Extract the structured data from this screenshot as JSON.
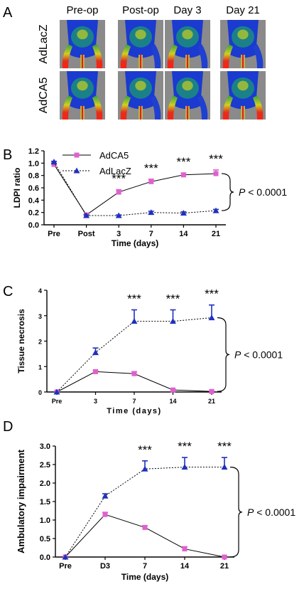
{
  "colors": {
    "pink": "#e060d0",
    "blue": "#2030c0",
    "axis": "#000000"
  },
  "panel_a": {
    "letter": "A",
    "columns": [
      "Pre-op",
      "Post-op",
      "Day 3",
      "Day 21"
    ],
    "rows": [
      "AdLacZ",
      "AdCA5"
    ]
  },
  "panel_b": {
    "letter": "B"
  },
  "panel_c": {
    "letter": "C"
  },
  "panel_d": {
    "letter": "D"
  },
  "chart_data": [
    {
      "type": "line",
      "ylabel": "LDPI ratio",
      "xlabel": "Time (days)",
      "categories": [
        "Pre",
        "Post",
        "3",
        "7",
        "14",
        "21"
      ],
      "ylim": [
        0,
        1.2
      ],
      "yticks": [
        "0.0",
        "0.2",
        "0.4",
        "0.6",
        "0.8",
        "1.0",
        "1.2"
      ],
      "series": [
        {
          "name": "AdCA5",
          "color": "pink",
          "marker": "square",
          "line": "solid",
          "values": [
            0.98,
            0.16,
            0.53,
            0.7,
            0.81,
            0.83
          ],
          "errors": [
            0.02,
            0.01,
            0.04,
            0.04,
            0.03,
            0.06
          ]
        },
        {
          "name": "AdLacZ",
          "color": "blue",
          "marker": "triangle",
          "line": "dotted",
          "values": [
            1.02,
            0.15,
            0.15,
            0.2,
            0.19,
            0.23
          ],
          "errors": [
            0.01,
            0.01,
            0.01,
            0.02,
            0.02,
            0.02
          ]
        }
      ],
      "annotations": {
        "stars": [
          "",
          "",
          "***",
          "***",
          "***",
          "***"
        ],
        "p_value_prefix": "P",
        "p_value_rest": " < 0.0001"
      },
      "legend": "top-left"
    },
    {
      "type": "line",
      "ylabel": "Tissue necrosis",
      "xlabel": "Time (days)",
      "categories": [
        "Pre",
        "3",
        "7",
        "14",
        "21"
      ],
      "ylim": [
        0,
        4
      ],
      "yticks": [
        "0",
        "1",
        "2",
        "3",
        "4"
      ],
      "series": [
        {
          "color": "pink",
          "marker": "square",
          "line": "solid",
          "values": [
            0.0,
            0.8,
            0.72,
            0.08,
            0.02
          ],
          "errors": [
            0.0,
            0.05,
            0.08,
            0.03,
            0.02
          ]
        },
        {
          "color": "blue",
          "marker": "triangle",
          "line": "dotted",
          "values": [
            0.0,
            1.55,
            2.78,
            2.78,
            2.92
          ],
          "errors": [
            0.0,
            0.18,
            0.45,
            0.45,
            0.5
          ]
        }
      ],
      "annotations": {
        "stars": [
          "",
          "",
          "***",
          "***",
          "***"
        ],
        "p_value_prefix": "P",
        "p_value_rest": " < 0.0001"
      }
    },
    {
      "type": "line",
      "ylabel": "Ambulatory impairment",
      "xlabel": "Time (days)",
      "categories": [
        "Pre",
        "D3",
        "7",
        "14",
        "21"
      ],
      "ylim": [
        0,
        3.0
      ],
      "yticks": [
        "0.0",
        "0.5",
        "1.0",
        "1.5",
        "2.0",
        "2.5",
        "3.0"
      ],
      "series": [
        {
          "color": "pink",
          "marker": "square",
          "line": "solid",
          "values": [
            0.0,
            1.15,
            0.8,
            0.22,
            0.0
          ],
          "errors": [
            0.0,
            0.06,
            0.05,
            0.06,
            0.02
          ]
        },
        {
          "color": "blue",
          "marker": "triangle",
          "line": "dotted",
          "values": [
            0.0,
            1.65,
            2.38,
            2.43,
            2.43
          ],
          "errors": [
            0.0,
            0.06,
            0.22,
            0.26,
            0.26
          ]
        }
      ],
      "annotations": {
        "stars": [
          "",
          "",
          "***",
          "***",
          "***"
        ],
        "p_value_prefix": "P",
        "p_value_rest": " < 0.0001"
      }
    }
  ]
}
